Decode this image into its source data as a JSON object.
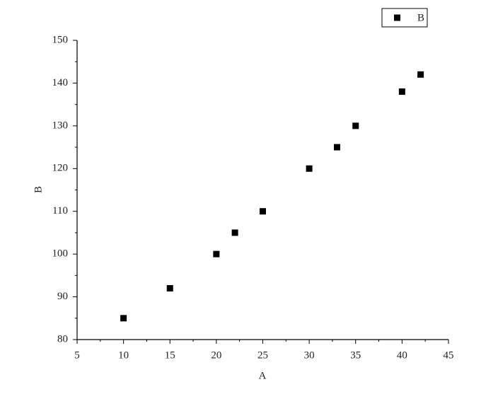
{
  "chart_data": {
    "type": "scatter",
    "x_label": "A",
    "y_label": "B",
    "series": [
      {
        "name": "B",
        "color": "#000000",
        "x": [
          10,
          15,
          20,
          22,
          25,
          30,
          33,
          35,
          40,
          42
        ],
        "values": [
          85,
          92,
          100,
          105,
          110,
          120,
          125,
          130,
          138,
          142
        ]
      }
    ],
    "xlim": [
      5,
      45
    ],
    "xticks": [
      5,
      10,
      15,
      20,
      25,
      30,
      35,
      40,
      45
    ],
    "ylim": [
      80,
      150
    ],
    "yticks": [
      80,
      90,
      100,
      110,
      120,
      130,
      140,
      150
    ],
    "grid": false,
    "legend": "top-right"
  }
}
